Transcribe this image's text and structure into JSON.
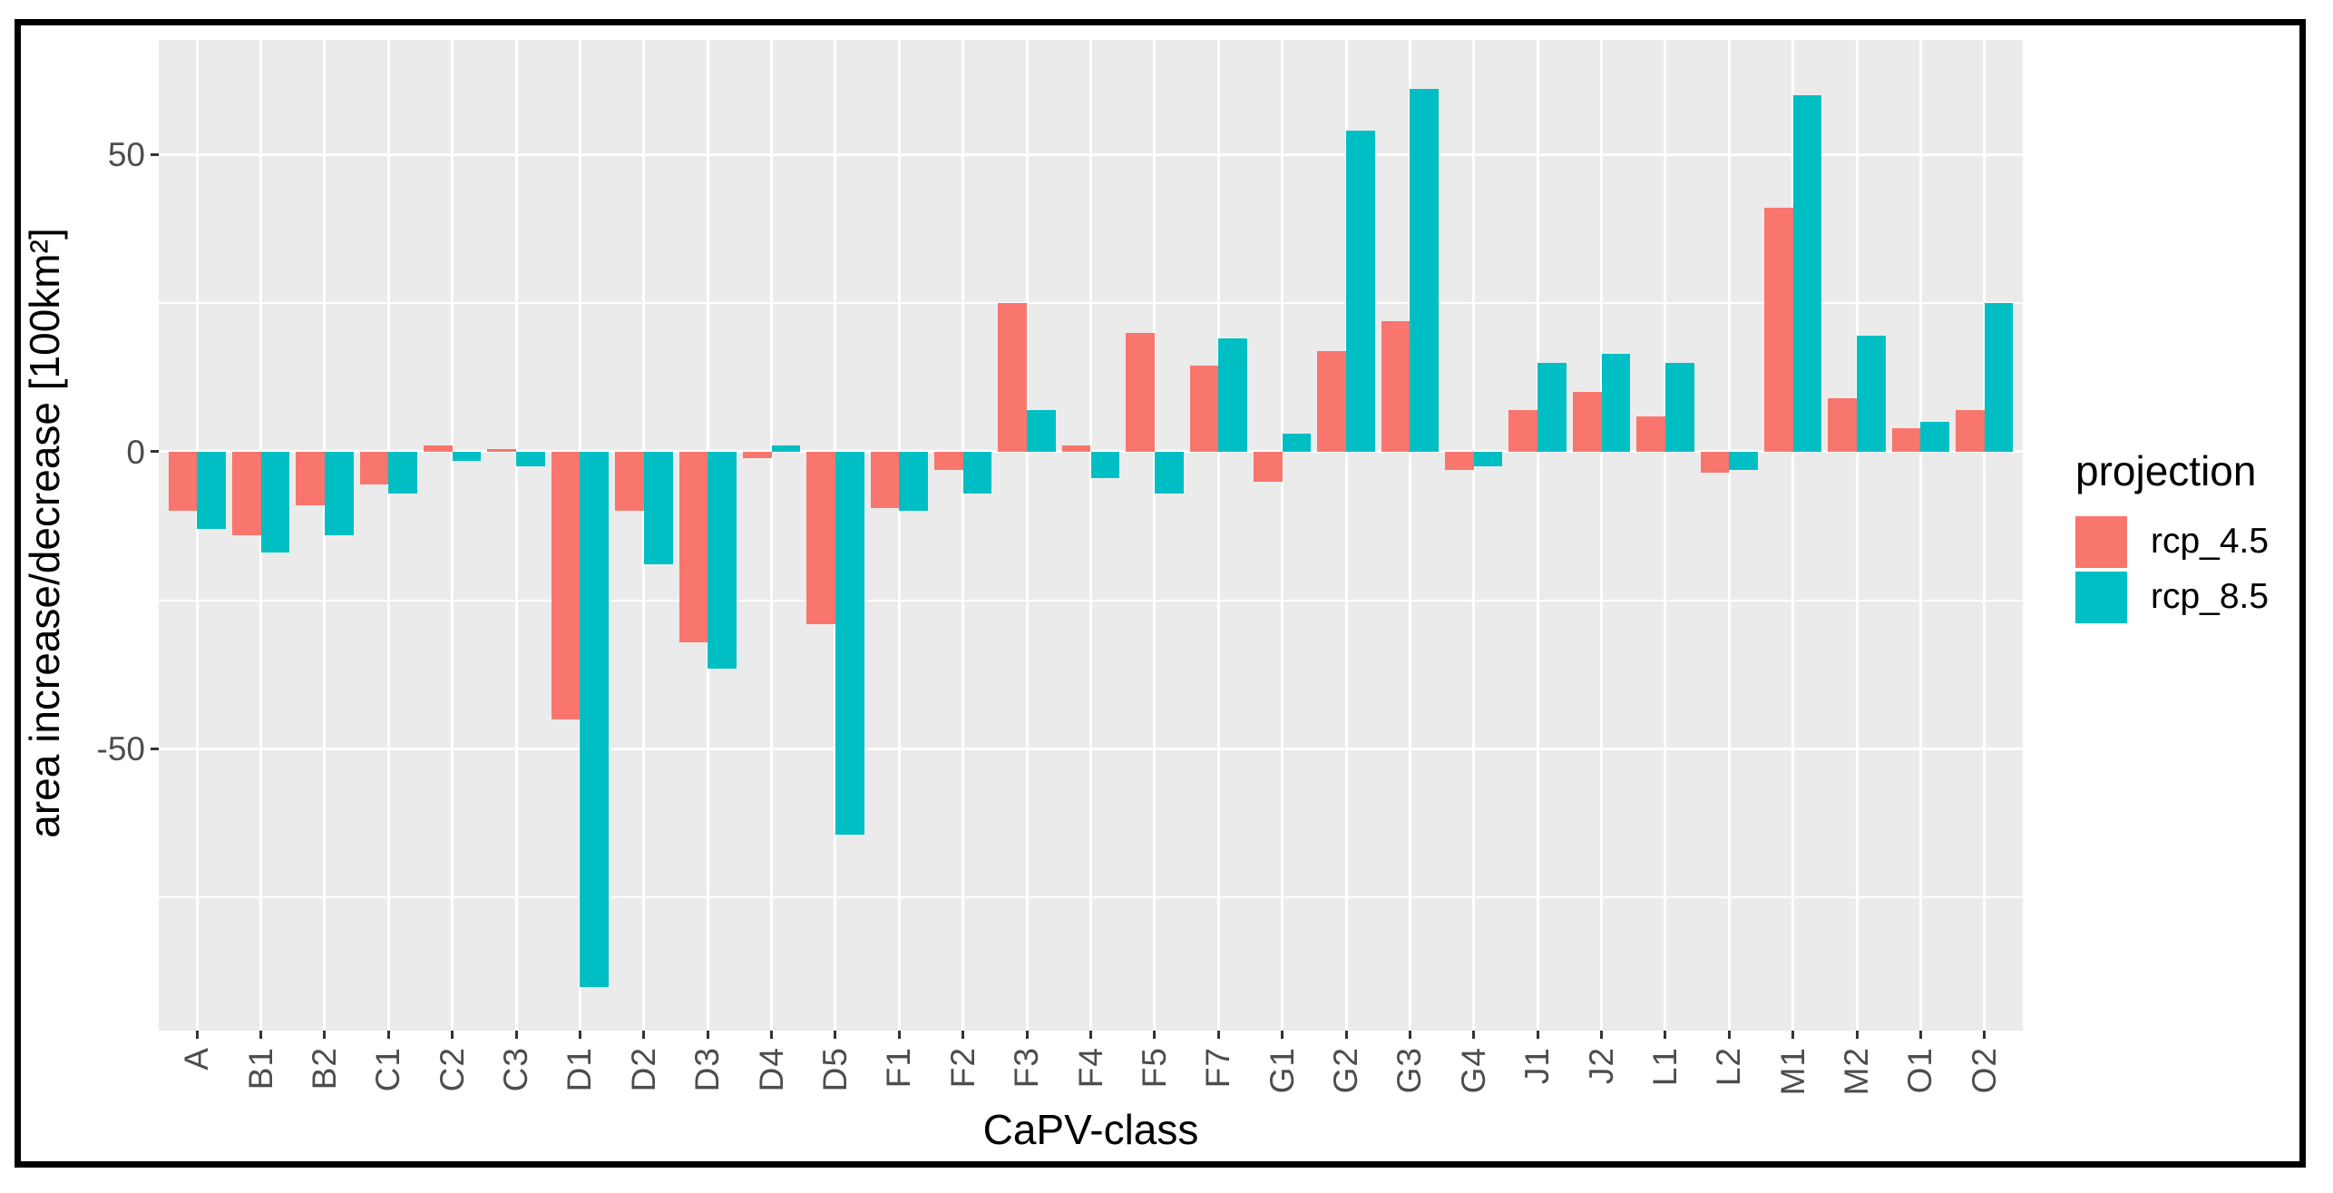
{
  "figure": {
    "x_axis_title": "CaPV-class",
    "y_axis_title": "area increase/decrease [100km²]"
  },
  "legend": {
    "title": "projection",
    "items": [
      {
        "label": "rcp_4.5",
        "color": "#F8766D"
      },
      {
        "label": "rcp_8.5",
        "color": "#00BFC4"
      }
    ]
  },
  "chart_data": {
    "type": "bar",
    "grouping": "dodged",
    "orientation": "vertical",
    "title": "",
    "xlabel": "CaPV-class",
    "ylabel": "area increase/decrease [100km²]",
    "legend_position": "right",
    "panel_bg": "#EBEBEB",
    "gridline_color": "#FFFFFF",
    "tick_color": "#333333",
    "axis_text_color": "#4D4D4D",
    "ylim": [
      -97.4,
      69.3
    ],
    "yticks": [
      {
        "value": 50,
        "label": "50"
      },
      {
        "value": 0,
        "label": "0"
      },
      {
        "value": -50,
        "label": "-50"
      }
    ],
    "yminor": [
      25,
      -25,
      -75
    ],
    "categories": [
      "A",
      "B1",
      "B2",
      "C1",
      "C2",
      "C3",
      "D1",
      "D2",
      "D3",
      "D4",
      "D5",
      "F1",
      "F2",
      "F3",
      "F4",
      "F5",
      "F7",
      "G1",
      "G2",
      "G3",
      "G4",
      "J1",
      "J2",
      "L1",
      "L2",
      "M1",
      "M2",
      "O1",
      "O2"
    ],
    "series": [
      {
        "name": "rcp_4.5",
        "color": "#F8766D",
        "values": [
          -10,
          -14,
          -9,
          -5.5,
          1,
          0.5,
          -45,
          -10,
          -32,
          -1,
          -29,
          -9.5,
          -3,
          25,
          1,
          20,
          14.5,
          -5,
          17,
          22,
          -3,
          7,
          10,
          6,
          -3.5,
          41,
          9,
          4,
          7
        ]
      },
      {
        "name": "rcp_8.5",
        "color": "#00BFC4",
        "values": [
          -13,
          -17,
          -14,
          -7,
          -1.5,
          -2.5,
          -90,
          -19,
          -36.5,
          1,
          -64.5,
          -10,
          -7,
          7,
          -4.5,
          -7,
          19,
          3,
          54,
          61,
          -2.5,
          15,
          16.5,
          15,
          -3,
          60,
          19.5,
          5,
          25
        ]
      }
    ]
  }
}
